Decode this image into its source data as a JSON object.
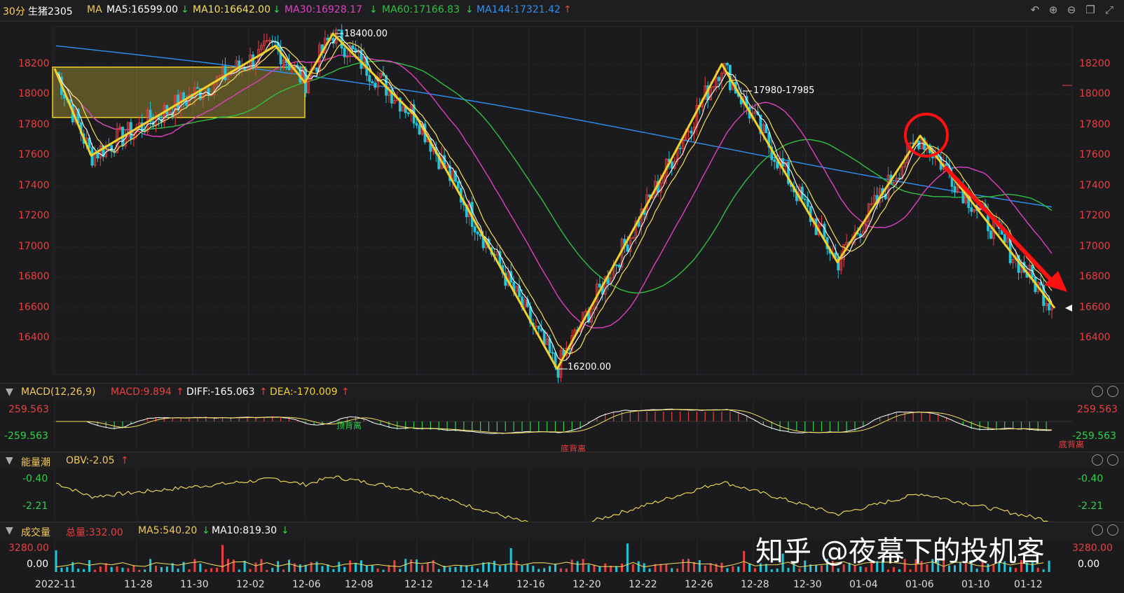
{
  "header": {
    "period": "30分",
    "symbol": "生猪2305",
    "ma_label": "MA",
    "ma5": "MA5:16599.00",
    "ma10": "MA10:16642.00",
    "ma30": "MA30:16928.17",
    "ma60": "MA60:17166.83",
    "ma144": "MA144:17321.42"
  },
  "toolbar_icons": [
    "undo-icon",
    "zoom-in-icon",
    "zoom-out-icon",
    "layout-icon",
    "expand-icon"
  ],
  "main_axis": {
    "ticks": [
      "18200",
      "18000",
      "17800",
      "17600",
      "17400",
      "17200",
      "17000",
      "16800",
      "16600",
      "16400"
    ]
  },
  "annotations": {
    "high": "18400.00",
    "low": "16200.00",
    "range": "17980-17985"
  },
  "macd": {
    "title": "MACD(12,26,9)",
    "macd": "MACD:9.894",
    "diff": "DIFF:-165.063",
    "dea": "DEA:-170.009",
    "top": "259.563",
    "bottom": "-259.563",
    "label_top_div": "顶背离",
    "label_bottom_div": "底背离",
    "label_bottom_div2": "底背离"
  },
  "obv": {
    "title": "能量潮",
    "value": "OBV:-2.05",
    "top": "-0.40",
    "bottom": "-2.21"
  },
  "volume": {
    "title": "成交量",
    "total": "总量:332.00",
    "ma5": "MA5:540.20",
    "ma10": "MA10:819.30",
    "top": "3280.00",
    "bottom": "0.00"
  },
  "dates": [
    "2022-11",
    "11-28",
    "11-30",
    "12-02",
    "12-06",
    "12-08",
    "12-12",
    "12-14",
    "12-16",
    "12-20",
    "12-22",
    "12-26",
    "12-28",
    "12-30",
    "01-04",
    "01-06",
    "01-10",
    "01-12"
  ],
  "watermark": "知乎 @夜幕下的投机客",
  "colors": {
    "up": "#e84040",
    "down": "#23c4d8",
    "ma5": "#ffffff",
    "ma10": "#f5e05a",
    "ma30": "#e040c0",
    "ma60": "#30c040",
    "ma144": "#2f8ff0",
    "wave": "#f2d22a",
    "arrow": "#ff1010"
  },
  "chart_data": {
    "type": "candlestick",
    "y_range": [
      16200,
      18400
    ],
    "wave_points": [
      {
        "date": "2022-11",
        "price": 18170
      },
      {
        "date": "11-28",
        "price": 17600
      },
      {
        "date": "12-02",
        "price": 18320
      },
      {
        "date": "12-06",
        "price": 18080
      },
      {
        "date": "12-06",
        "price": 18400
      },
      {
        "date": "12-12",
        "price": 17850
      },
      {
        "date": "12-16",
        "price": 16200
      },
      {
        "date": "12-22",
        "price": 17420
      },
      {
        "date": "12-26",
        "price": 18200
      },
      {
        "date": "12-30",
        "price": 16900
      },
      {
        "date": "01-06",
        "price": 17730
      },
      {
        "date": "01-12",
        "price": 16600
      }
    ],
    "box": {
      "from": "2022-11",
      "to": "12-06",
      "low": 17850,
      "high": 18180
    }
  }
}
